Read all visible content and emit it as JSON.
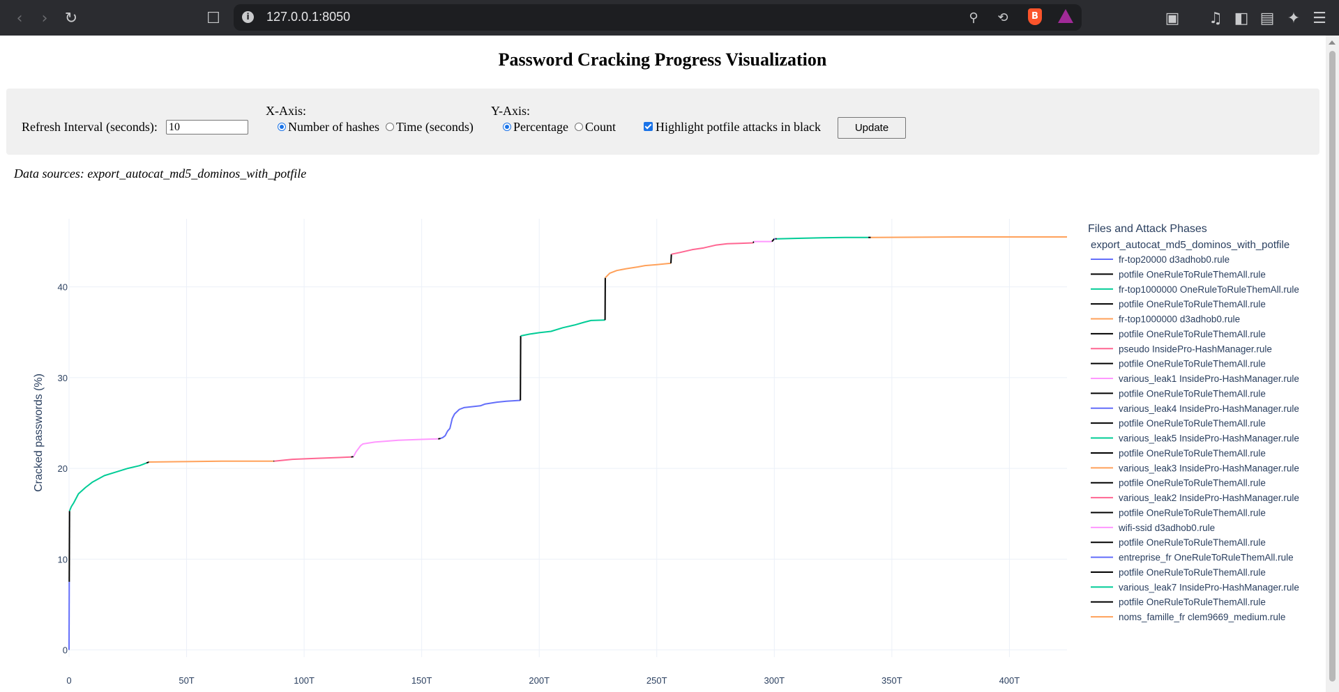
{
  "browser": {
    "url": "127.0.0.1:8050",
    "brave_label": "B"
  },
  "page": {
    "title": "Password Cracking Progress Visualization",
    "data_sources_text": "Data sources: export_autocat_md5_dominos_with_potfile"
  },
  "controls": {
    "refresh_label": "Refresh Interval (seconds):",
    "refresh_value": "10",
    "x_axis_label": "X-Axis:",
    "x_options": [
      "Number of hashes",
      "Time (seconds)"
    ],
    "x_selected": "Number of hashes",
    "y_axis_label": "Y-Axis:",
    "y_options": [
      "Percentage",
      "Count"
    ],
    "y_selected": "Percentage",
    "highlight_label": "Highlight potfile attacks in black",
    "highlight_checked": true,
    "update_label": "Update"
  },
  "colors": {
    "blue": "#636efa",
    "green": "#00cc96",
    "orange": "#ffa15a",
    "red": "#ef553b",
    "pink": "#ff6692",
    "magenta": "#ff97ff",
    "black": "#000000",
    "grid": "#ebf0f8",
    "axis_text": "#2a3f5f"
  },
  "chart_data": {
    "type": "line",
    "title": "",
    "xlabel": "",
    "ylabel": "Cracked passwords (%)",
    "x_unit": "T",
    "x_ticks": [
      "0",
      "50T",
      "100T",
      "150T",
      "200T",
      "250T",
      "300T",
      "350T",
      "400T"
    ],
    "x_tick_values": [
      0,
      50,
      100,
      150,
      200,
      250,
      300,
      350,
      400
    ],
    "y_ticks": [
      "0",
      "10",
      "20",
      "30",
      "40"
    ],
    "y_tick_values": [
      0,
      10,
      20,
      30,
      40
    ],
    "xlim": [
      0,
      424.5
    ],
    "ylim": [
      -0.8,
      47.5
    ],
    "grid": true,
    "legend_title": "Files and Attack Phases",
    "legend_group": "export_autocat_md5_dominos_with_potfile",
    "legend_position": "right",
    "series": [
      {
        "name": "fr-top20000 d3adhob0.rule",
        "color": "blue",
        "points": [
          [
            0,
            0
          ],
          [
            0.1,
            7.5
          ]
        ]
      },
      {
        "name": "potfile OneRuleToRuleThemAll.rule",
        "color": "black",
        "points": [
          [
            0.1,
            7.5
          ],
          [
            0.2,
            15.3
          ]
        ]
      },
      {
        "name": "fr-top1000000 OneRuleToRuleThemAll.rule",
        "color": "green",
        "points": [
          [
            0.2,
            15.3
          ],
          [
            1,
            15.8
          ],
          [
            2,
            16.2
          ],
          [
            4,
            17.2
          ],
          [
            7,
            17.9
          ],
          [
            10,
            18.5
          ],
          [
            15,
            19.2
          ],
          [
            20,
            19.6
          ],
          [
            25,
            20
          ],
          [
            30,
            20.3
          ],
          [
            33,
            20.6
          ]
        ]
      },
      {
        "name": "potfile OneRuleToRuleThemAll.rule",
        "color": "black",
        "points": [
          [
            33,
            20.6
          ],
          [
            34,
            20.7
          ]
        ]
      },
      {
        "name": "fr-top1000000 d3adhob0.rule",
        "color": "orange",
        "points": [
          [
            34,
            20.7
          ],
          [
            50,
            20.75
          ],
          [
            65,
            20.8
          ],
          [
            87,
            20.8
          ]
        ]
      },
      {
        "name": "potfile OneRuleToRuleThemAll.rule",
        "color": "black",
        "points": [
          [
            87,
            20.8
          ],
          [
            87.3,
            20.8
          ]
        ]
      },
      {
        "name": "pseudo InsidePro-HashManager.rule",
        "color": "pink",
        "points": [
          [
            87.3,
            20.8
          ],
          [
            95,
            21
          ],
          [
            105,
            21.1
          ],
          [
            115,
            21.2
          ],
          [
            120,
            21.25
          ]
        ]
      },
      {
        "name": "potfile OneRuleToRuleThemAll.rule",
        "color": "black",
        "points": [
          [
            120,
            21.25
          ],
          [
            121,
            21.3
          ]
        ]
      },
      {
        "name": "various_leak1 InsidePro-HashManager.rule",
        "color": "magenta",
        "points": [
          [
            121,
            21.3
          ],
          [
            122,
            21.8
          ],
          [
            124,
            22.5
          ],
          [
            125,
            22.7
          ],
          [
            130,
            22.9
          ],
          [
            140,
            23.1
          ],
          [
            150,
            23.2
          ],
          [
            157,
            23.25
          ]
        ]
      },
      {
        "name": "potfile OneRuleToRuleThemAll.rule",
        "color": "black",
        "points": [
          [
            157,
            23.25
          ],
          [
            158,
            23.3
          ]
        ]
      },
      {
        "name": "various_leak4 InsidePro-HashManager.rule",
        "color": "blue",
        "points": [
          [
            158,
            23.3
          ],
          [
            159,
            23.4
          ],
          [
            160,
            23.6
          ],
          [
            161,
            24.1
          ],
          [
            162,
            24.4
          ],
          [
            163,
            25.5
          ],
          [
            164,
            26
          ],
          [
            166,
            26.5
          ],
          [
            168,
            26.7
          ],
          [
            175,
            26.9
          ],
          [
            177,
            27.1
          ],
          [
            182,
            27.3
          ],
          [
            186,
            27.4
          ],
          [
            192,
            27.5
          ]
        ]
      },
      {
        "name": "potfile OneRuleToRuleThemAll.rule",
        "color": "black",
        "points": [
          [
            192,
            27.5
          ],
          [
            192.1,
            34.6
          ]
        ]
      },
      {
        "name": "various_leak5 InsidePro-HashManager.rule",
        "color": "green",
        "points": [
          [
            192.1,
            34.6
          ],
          [
            196,
            34.8
          ],
          [
            200,
            34.95
          ],
          [
            205,
            35.1
          ],
          [
            210,
            35.5
          ],
          [
            215,
            35.8
          ],
          [
            219,
            36.1
          ],
          [
            222,
            36.3
          ],
          [
            228,
            36.35
          ]
        ]
      },
      {
        "name": "potfile OneRuleToRuleThemAll.rule",
        "color": "black",
        "points": [
          [
            228,
            36.35
          ],
          [
            228.1,
            41
          ]
        ]
      },
      {
        "name": "various_leak3 InsidePro-HashManager.rule",
        "color": "orange",
        "points": [
          [
            228.1,
            41
          ],
          [
            230,
            41.5
          ],
          [
            233,
            41.8
          ],
          [
            237,
            42
          ],
          [
            242,
            42.2
          ],
          [
            245,
            42.35
          ],
          [
            250,
            42.45
          ],
          [
            256,
            42.6
          ]
        ]
      },
      {
        "name": "potfile OneRuleToRuleThemAll.rule",
        "color": "black",
        "points": [
          [
            256,
            42.6
          ],
          [
            256.2,
            43.6
          ]
        ]
      },
      {
        "name": "various_leak2 InsidePro-HashManager.rule",
        "color": "pink",
        "points": [
          [
            256.2,
            43.6
          ],
          [
            260,
            43.8
          ],
          [
            265,
            44.1
          ],
          [
            270,
            44.3
          ],
          [
            275,
            44.6
          ],
          [
            280,
            44.75
          ],
          [
            285,
            44.8
          ],
          [
            291,
            44.85
          ]
        ]
      },
      {
        "name": "potfile OneRuleToRuleThemAll.rule",
        "color": "black",
        "points": [
          [
            291,
            44.85
          ],
          [
            291.3,
            45
          ]
        ]
      },
      {
        "name": "wifi-ssid d3adhob0.rule",
        "color": "magenta",
        "points": [
          [
            291.3,
            45
          ],
          [
            295,
            45
          ],
          [
            299,
            45
          ]
        ]
      },
      {
        "name": "potfile OneRuleToRuleThemAll.rule",
        "color": "black",
        "points": [
          [
            299,
            45
          ],
          [
            300,
            45.3
          ]
        ]
      },
      {
        "name": "entreprise_fr OneRuleToRuleThemAll.rule",
        "color": "blue",
        "points": [
          [
            300,
            45.3
          ],
          [
            300.5,
            45.3
          ]
        ]
      },
      {
        "name": "potfile OneRuleToRuleThemAll.rule",
        "color": "black",
        "points": [
          [
            300.5,
            45.3
          ],
          [
            301,
            45.3
          ]
        ]
      },
      {
        "name": "various_leak7 InsidePro-HashManager.rule",
        "color": "green",
        "points": [
          [
            301,
            45.3
          ],
          [
            310,
            45.35
          ],
          [
            320,
            45.4
          ],
          [
            330,
            45.45
          ],
          [
            340,
            45.45
          ]
        ]
      },
      {
        "name": "potfile OneRuleToRuleThemAll.rule",
        "color": "black",
        "points": [
          [
            340,
            45.45
          ],
          [
            341,
            45.45
          ]
        ]
      },
      {
        "name": "noms_famille_fr clem9669_medium.rule",
        "color": "orange",
        "points": [
          [
            341,
            45.45
          ],
          [
            380,
            45.5
          ],
          [
            424.5,
            45.5
          ]
        ]
      }
    ]
  }
}
